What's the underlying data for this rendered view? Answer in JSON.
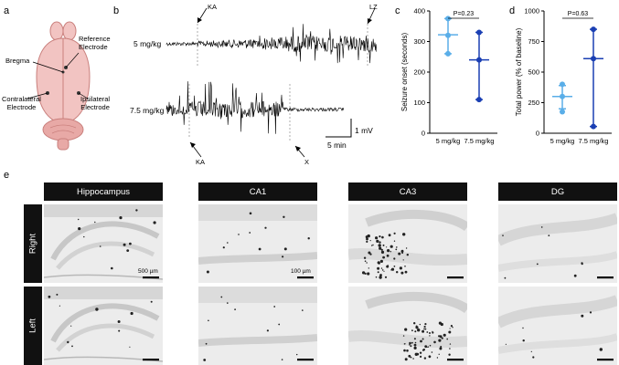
{
  "panels": {
    "a": "a",
    "b": "b",
    "c": "c",
    "d": "d",
    "e": "e"
  },
  "panel_a": {
    "labels": {
      "reference": "Reference\nElectrode",
      "bregma": "Bregma",
      "contralateral": "Contralateral\nElectrode",
      "ipsilateral": "Ipsilateral\nElectrode"
    },
    "colors": {
      "brain": "#f2c4c2",
      "cerebellum": "#e8a9a6",
      "outline": "#c97f7c"
    }
  },
  "panel_b": {
    "trace1_label": "5 mg/kg",
    "trace2_label": "7.5 mg/kg",
    "markers_top": {
      "ka": "KA",
      "lz": "LZ"
    },
    "markers_bottom": {
      "ka": "KA",
      "x": "X"
    },
    "scale": {
      "voltage": "1 mV",
      "time": "5 min"
    }
  },
  "chart_data": [
    {
      "type": "scatter",
      "panel": "c",
      "ylabel": "Seizure onset (seconds)",
      "ylim": [
        0,
        400
      ],
      "yticks": [
        0,
        100,
        200,
        300,
        400
      ],
      "categories": [
        "5 mg/kg",
        "7.5 mg/kg"
      ],
      "series": [
        {
          "points": [
            375,
            320,
            260
          ],
          "mean": 322,
          "sd_low": 260,
          "sd_high": 375,
          "color": "#5aaee8"
        },
        {
          "points": [
            330,
            240,
            110
          ],
          "mean": 240,
          "sd_low": 110,
          "sd_high": 330,
          "color": "#1a3fb3"
        }
      ],
      "annotation": "P=0.23"
    },
    {
      "type": "scatter",
      "panel": "d",
      "ylabel": "Total power (% of baseline)",
      "ylim": [
        0,
        1000
      ],
      "yticks": [
        0,
        250,
        500,
        750,
        1000
      ],
      "categories": [
        "5 mg/kg",
        "7.5 mg/kg"
      ],
      "series": [
        {
          "points": [
            400,
            300,
            175
          ],
          "mean": 300,
          "sd_low": 200,
          "sd_high": 390,
          "color": "#5aaee8"
        },
        {
          "points": [
            850,
            610,
            55
          ],
          "mean": 610,
          "sd_low": 55,
          "sd_high": 850,
          "color": "#1a3fb3"
        }
      ],
      "annotation": "P=0.63"
    }
  ],
  "panel_e": {
    "columns": [
      "Hippocampus",
      "CA1",
      "CA3",
      "DG"
    ],
    "rows": [
      "Right",
      "Left"
    ],
    "scalebars": {
      "hippocampus": "500 µm",
      "ca1": "100 µm"
    }
  }
}
